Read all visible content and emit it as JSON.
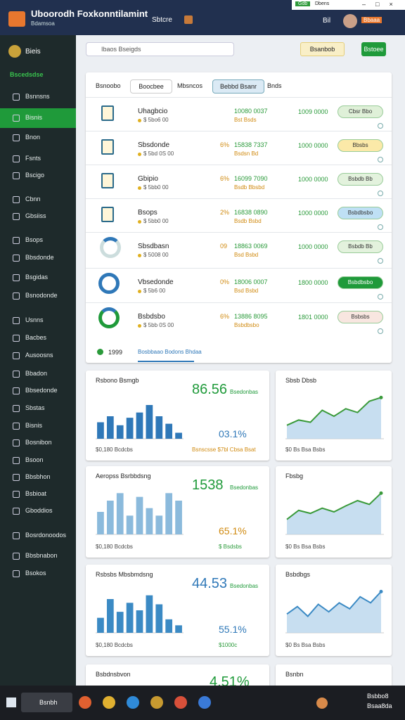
{
  "window": {
    "title": "Uboorodh Foxkonntilamint",
    "subtitle": "Bdamsoa",
    "menu": "Sbtcre",
    "strip_badge": "Gdb",
    "strip_text": "Dbens",
    "user_code": "Bil",
    "user_badge": "Bbaaa"
  },
  "sidebar": {
    "profile": "Bieis",
    "items": [
      {
        "label": "Bscedsdse",
        "state": "heading"
      },
      {
        "label": "Bsnnsns",
        "state": "plain"
      },
      {
        "label": "Bisnis",
        "state": "active"
      },
      {
        "label": "Bnon",
        "state": "plain"
      },
      {
        "label": "Fsnts",
        "state": "plain"
      },
      {
        "label": "Bscigo",
        "state": "plain"
      },
      {
        "label": "Cbnn",
        "state": "plain"
      },
      {
        "label": "Gbsiiss",
        "state": "plain"
      },
      {
        "label": "Bsops",
        "state": "plain"
      },
      {
        "label": "Bbsdonde",
        "state": "plain"
      },
      {
        "label": "Bsgidas",
        "state": "plain"
      },
      {
        "label": "Bsnodonde",
        "state": "plain"
      },
      {
        "label": "Usnns",
        "state": "plain"
      },
      {
        "label": "Bacbes",
        "state": "plain"
      },
      {
        "label": "Ausoosns",
        "state": "plain"
      },
      {
        "label": "Bbadon",
        "state": "plain"
      },
      {
        "label": "Bbsedonde",
        "state": "plain"
      },
      {
        "label": "Sbstas",
        "state": "plain"
      },
      {
        "label": "Bisnis",
        "state": "plain"
      },
      {
        "label": "Bosnibon",
        "state": "plain"
      },
      {
        "label": "Bsoon",
        "state": "plain"
      },
      {
        "label": "Bbsbhon",
        "state": "plain"
      },
      {
        "label": "Bsbioat",
        "state": "plain"
      },
      {
        "label": "Gboddios",
        "state": "plain"
      },
      {
        "label": "Bosrdonoodos",
        "state": "plain"
      },
      {
        "label": "Bbsbnabon",
        "state": "plain"
      },
      {
        "label": "Bsokos",
        "state": "plain"
      }
    ]
  },
  "toolbar": {
    "search": "Ibaos Bseigds",
    "filter": "Bsanbob",
    "action": "Bstoee"
  },
  "tabs": [
    "Bsnoobo",
    "Boocbee",
    "Mbsncos",
    "Bebbd Bsanr",
    "Bnds"
  ],
  "rows": [
    {
      "name": "Uhagbcio",
      "sub": "$ 5bo6 00",
      "pct": "",
      "amount": "10080 0037",
      "amount_sub": "Bst Bsds",
      "total": "1009 0000",
      "action": "Cbsr Bbo",
      "color": "#dff0d8"
    },
    {
      "name": "Sbsdonde",
      "sub": "$ 5bd 0S 00",
      "pct": "6%",
      "amount": "15838 7337",
      "amount_sub": "Bsdsn Bd",
      "total": "1000 0000",
      "action": "Bbsbs",
      "color": "#fbe9a8"
    },
    {
      "name": "Gbipio",
      "sub": "$ 5bb0 00",
      "pct": "6%",
      "amount": "16099 7090",
      "amount_sub": "Bsdb Bbsbd",
      "total": "1000 0000",
      "action": "Bsbdb Bb",
      "color": "#e3f2dd"
    },
    {
      "name": "Bsops",
      "sub": "$ 5bb0 00",
      "pct": "2%",
      "amount": "16838 0890",
      "amount_sub": "Bsdb Bsbd",
      "total": "1000 0000",
      "action": "Bsbdbsbo",
      "color": "#bfe0f5"
    },
    {
      "name": "Sbsdbasn",
      "sub": "$ 5008 00",
      "pct": "09",
      "amount": "18863 0069",
      "amount_sub": "Bsd Bsbd",
      "total": "1000 0000",
      "action": "Bsbdb Bb",
      "color": "#e3f2dd"
    },
    {
      "name": "Vbsedonde",
      "sub": "$ 5b6 00",
      "pct": "0%",
      "amount": "18006 0007",
      "amount_sub": "Bsd Bsbd",
      "total": "1800 0000",
      "action": "Bsbdbsbo",
      "color": "#1f9a3a"
    },
    {
      "name": "Bsbdsbo",
      "sub": "$ 5bb 0S 00",
      "pct": "6%",
      "amount": "13886 8095",
      "amount_sub": "Bsbdbsbo",
      "total": "1801 0000",
      "action": "Bsbsbs",
      "color": "#f8e6e0"
    }
  ],
  "list_footer": {
    "count": "1999",
    "link": "Bosbbaao Bodons Bhdaa"
  },
  "cards": [
    {
      "title": "Rsbono Bsmgb",
      "big": "86.56",
      "big_label": "Bsedonbas",
      "small": "03.1%",
      "foot": "$0,180 Bcdcbs",
      "foot2": "Bsnscsse $7bl Cbsa Bsat",
      "color": "#2f78b8",
      "ylim": [
        0,
        60
      ],
      "bars": [
        22,
        30,
        18,
        28,
        35,
        45,
        30,
        20,
        8
      ]
    },
    {
      "title": "Sbsb Dbsb",
      "foot": "$0 Bs Bsa Bsbs",
      "color": "#3a9a3a",
      "ylim": [
        0,
        60
      ],
      "line": [
        18,
        25,
        22,
        38,
        30,
        40,
        35,
        50,
        55
      ]
    },
    {
      "title": "Aeropss Bsrbbdsng",
      "big": "1538",
      "big_label": "Bsedonbas",
      "small": "65.1%",
      "foot": "$0,180 Bcdcbs",
      "foot2": "$ Bsdsbs",
      "color": "#8bbadc",
      "ylim": [
        0,
        60
      ],
      "bars": [
        30,
        45,
        55,
        25,
        50,
        35,
        25,
        55,
        45
      ]
    },
    {
      "title": "Fbsbg",
      "foot": "$0 Bs Bsa Bsbs",
      "color": "#3a9a3a",
      "ylim": [
        0,
        60
      ],
      "line": [
        20,
        32,
        28,
        35,
        30,
        38,
        45,
        40,
        55
      ]
    },
    {
      "title": "Rsbsbs Mbsbmdsng",
      "big": "44.53",
      "big_label": "Bsedonbas",
      "small": "55.1%",
      "foot": "$0,180 Bcdcbs",
      "foot2": "$1000c",
      "color": "#3b8ac4",
      "ylim": [
        0,
        60
      ],
      "bars": [
        20,
        45,
        28,
        40,
        30,
        50,
        38,
        18,
        10
      ]
    },
    {
      "title": "Bsbdbgs",
      "foot": "$0 Bs Bsa Bsbs",
      "color": "#3b8ac4",
      "ylim": [
        0,
        60
      ],
      "line": [
        25,
        35,
        22,
        38,
        28,
        40,
        32,
        48,
        40,
        55
      ]
    },
    {
      "title": "Bsbdnsbvon",
      "big": "4.51%"
    },
    {
      "title": "Bsnbn"
    }
  ],
  "taskbar": {
    "search": "Bsnbh",
    "time": "Bsbbo8",
    "date": "Bsaa8da"
  }
}
